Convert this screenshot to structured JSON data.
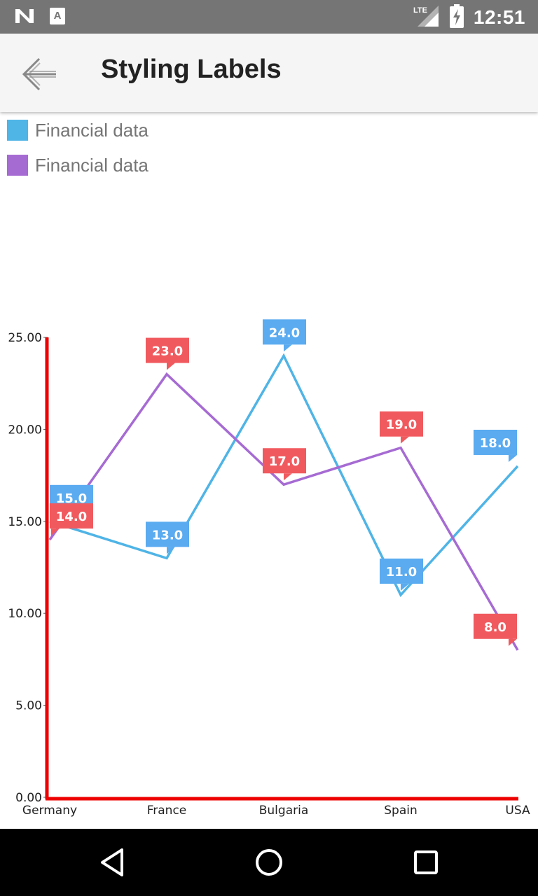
{
  "status_bar": {
    "time": "12:51",
    "network": "LTE",
    "left_icons": [
      "n-logo-icon",
      "a-notification-icon"
    ],
    "right_icons": [
      "lte-signal-icon",
      "battery-charging-icon"
    ]
  },
  "app_bar": {
    "title": "Styling Labels",
    "back_icon": "arrow-left-icon"
  },
  "colors": {
    "series1": "#4fb4e6",
    "series2": "#a66bd3",
    "label_blue": "#5aabf0",
    "label_red": "#f05a5f",
    "axis": "#ee0000"
  },
  "legend": [
    {
      "label": "Financial data",
      "color": "#4fb4e6"
    },
    {
      "label": "Financial data",
      "color": "#a66bd3"
    }
  ],
  "chart_data": {
    "type": "line",
    "categories": [
      "Germany",
      "France",
      "Bulgaria",
      "Spain",
      "USA"
    ],
    "series": [
      {
        "name": "Financial data",
        "color": "#4fb4e6",
        "label_color": "#5aabf0",
        "values": [
          15,
          13,
          24,
          11,
          18
        ],
        "labels": [
          "15.0",
          "13.0",
          "24.0",
          "11.0",
          "18.0"
        ]
      },
      {
        "name": "Financial data",
        "color": "#a66bd3",
        "label_color": "#f05a5f",
        "values": [
          14,
          23,
          17,
          19,
          8
        ],
        "labels": [
          "14.0",
          "23.0",
          "17.0",
          "19.0",
          "8.0"
        ]
      }
    ],
    "ylim": [
      0,
      25
    ],
    "yticks": [
      "0.00",
      "5.00",
      "10.00",
      "15.00",
      "20.00",
      "25.00"
    ],
    "grid": false,
    "legend_position": "top-left"
  },
  "nav_bar": {
    "buttons": [
      "back-triangle-icon",
      "home-circle-icon",
      "recents-square-icon"
    ]
  }
}
